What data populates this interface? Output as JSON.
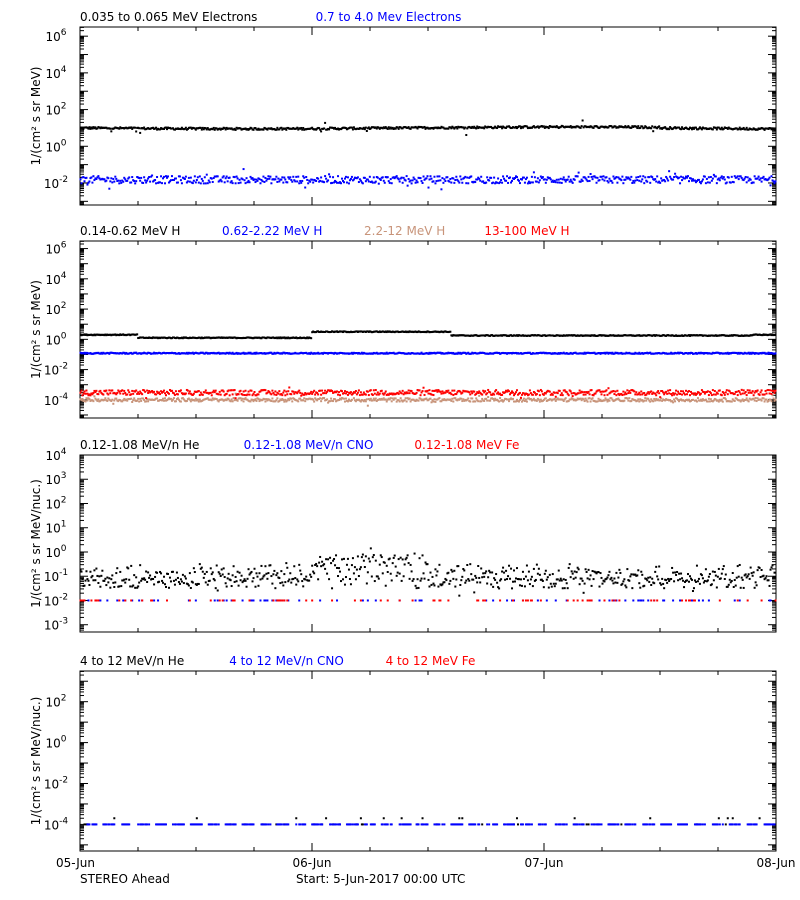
{
  "colors": {
    "black": "#000000",
    "blue": "#0000ff",
    "tan": "#c8947a",
    "red": "#ff0000"
  },
  "footer": {
    "spacecraft": "STEREO Ahead",
    "start": "Start:  5-Jun-2017 00:00 UTC"
  },
  "chart_data": [
    {
      "type": "scatter",
      "titles": [
        {
          "text": "0.035 to 0.065 MeV Electrons",
          "color": "black"
        },
        {
          "text": "0.7 to 4.0 Mev Electrons",
          "color": "blue"
        }
      ],
      "ylabel": "1/(cm² s sr MeV)",
      "ylog": true,
      "ylim_exp": [
        -3.2,
        6.5
      ],
      "yticks": [
        -2,
        0,
        2,
        4,
        6
      ],
      "xlim_days": [
        0,
        3
      ],
      "series": [
        {
          "color": "black",
          "level": 10,
          "pattern": "bump",
          "noise": 0.06,
          "outliers": 0.01
        },
        {
          "color": "blue",
          "level": 0.015,
          "pattern": "flat",
          "noise": 0.2,
          "outliers": 0.05
        }
      ]
    },
    {
      "type": "scatter",
      "titles": [
        {
          "text": "0.14-0.62 MeV H",
          "color": "black"
        },
        {
          "text": "0.62-2.22 MeV H",
          "color": "blue"
        },
        {
          "text": "2.2-12 MeV H",
          "color": "tan"
        },
        {
          "text": "13-100 MeV H",
          "color": "red"
        }
      ],
      "ylabel": "1/(cm² s sr MeV)",
      "ylog": true,
      "ylim_exp": [
        -5.2,
        6.5
      ],
      "yticks": [
        -4,
        -2,
        0,
        2,
        4,
        6
      ],
      "xlim_days": [
        0,
        3
      ],
      "series": [
        {
          "color": "black",
          "level": 2.0,
          "pattern": "hstep",
          "noise": 0.03,
          "outliers": 0
        },
        {
          "color": "blue",
          "level": 0.12,
          "pattern": "flat",
          "noise": 0.04,
          "outliers": 0
        },
        {
          "color": "tan",
          "level": 0.0001,
          "pattern": "flat",
          "noise": 0.12,
          "outliers": 0.02
        },
        {
          "color": "red",
          "level": 0.0003,
          "pattern": "flat",
          "noise": 0.18,
          "outliers": 0.02
        }
      ]
    },
    {
      "type": "scatter",
      "titles": [
        {
          "text": "0.12-1.08 MeV/n He",
          "color": "black"
        },
        {
          "text": "0.12-1.08 MeV/n CNO",
          "color": "blue"
        },
        {
          "text": "0.12-1.08 MeV Fe",
          "color": "red"
        }
      ],
      "ylabel": "1/(cm² s sr MeV/nuc.)",
      "ylog": true,
      "ylim_exp": [
        -3.3,
        4
      ],
      "yticks": [
        -3,
        -2,
        -1,
        0,
        1,
        2,
        3,
        4
      ],
      "xlim_days": [
        0,
        3
      ],
      "series": [
        {
          "color": "black",
          "level": 0.08,
          "pattern": "quant",
          "noise": 0.2,
          "outliers": 0.05
        },
        {
          "color": "blue",
          "level": 0.01,
          "pattern": "sparse",
          "noise": 0,
          "outliers": 0
        },
        {
          "color": "red",
          "level": 0.01,
          "pattern": "sparse",
          "noise": 0,
          "outliers": 0
        }
      ]
    },
    {
      "type": "scatter",
      "titles": [
        {
          "text": "4 to 12 MeV/n He",
          "color": "black"
        },
        {
          "text": "4 to 12 MeV/n CNO",
          "color": "blue"
        },
        {
          "text": "4 to 12 MeV Fe",
          "color": "red"
        }
      ],
      "ylabel": "1/(cm² s sr MeV/nuc.)",
      "ylog": true,
      "ylim_exp": [
        -5.3,
        3.5
      ],
      "yticks": [
        -4,
        -2,
        0,
        2
      ],
      "xlim_days": [
        0,
        3
      ],
      "series": [
        {
          "color": "black",
          "level": 0.0001,
          "pattern": "rare",
          "noise": 0,
          "outliers": 0
        },
        {
          "color": "blue",
          "level": 0.0001,
          "pattern": "dashed",
          "noise": 0,
          "outliers": 0
        }
      ]
    }
  ],
  "xaxis": {
    "ticks": [
      {
        "day": 0,
        "label": "05-Jun"
      },
      {
        "day": 1,
        "label": "06-Jun"
      },
      {
        "day": 2,
        "label": "07-Jun"
      },
      {
        "day": 3,
        "label": "08-Jun"
      }
    ]
  }
}
